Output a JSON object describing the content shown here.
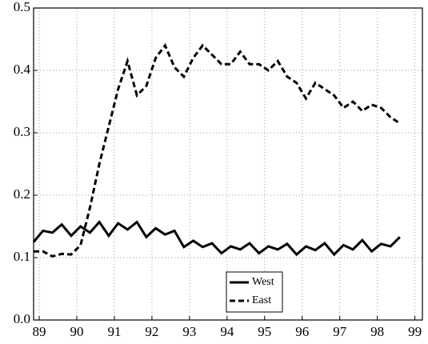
{
  "chart_data": {
    "type": "line",
    "x": [
      88.85,
      89.1,
      89.35,
      89.6,
      89.85,
      90.1,
      90.35,
      90.6,
      90.85,
      91.1,
      91.35,
      91.6,
      91.85,
      92.1,
      92.35,
      92.6,
      92.85,
      93.1,
      93.35,
      93.6,
      93.85,
      94.1,
      94.35,
      94.6,
      94.85,
      95.1,
      95.35,
      95.6,
      95.85,
      96.1,
      96.35,
      96.6,
      96.85,
      97.1,
      97.35,
      97.6,
      97.85,
      98.1,
      98.35,
      98.6
    ],
    "series": [
      {
        "name": "West",
        "color": "#000000",
        "dash": "solid",
        "values": [
          0.125,
          0.143,
          0.14,
          0.153,
          0.135,
          0.15,
          0.14,
          0.157,
          0.135,
          0.155,
          0.145,
          0.157,
          0.133,
          0.147,
          0.137,
          0.143,
          0.117,
          0.127,
          0.117,
          0.123,
          0.107,
          0.118,
          0.113,
          0.123,
          0.107,
          0.118,
          0.113,
          0.122,
          0.105,
          0.118,
          0.112,
          0.123,
          0.105,
          0.12,
          0.113,
          0.128,
          0.11,
          0.122,
          0.118,
          0.133
        ]
      },
      {
        "name": "East",
        "color": "#000000",
        "dash": "dashed",
        "values": [
          0.11,
          0.11,
          0.102,
          0.106,
          0.105,
          0.12,
          0.18,
          0.25,
          0.31,
          0.37,
          0.415,
          0.36,
          0.375,
          0.42,
          0.44,
          0.405,
          0.39,
          0.42,
          0.44,
          0.425,
          0.41,
          0.41,
          0.43,
          0.41,
          0.41,
          0.4,
          0.415,
          0.39,
          0.38,
          0.355,
          0.38,
          0.37,
          0.36,
          0.34,
          0.35,
          0.335,
          0.345,
          0.34,
          0.325,
          0.315
        ]
      }
    ],
    "xlim": [
      88.85,
      99.2
    ],
    "xticks": [
      89,
      90,
      91,
      92,
      93,
      94,
      95,
      96,
      97,
      98,
      99
    ],
    "ylim": [
      0,
      0.5
    ],
    "yticks": [
      {
        "value": 0,
        "label": "0.0"
      },
      0.1,
      0.2,
      0.3,
      0.4,
      0.5
    ],
    "grid": true,
    "legend": "bottom"
  }
}
